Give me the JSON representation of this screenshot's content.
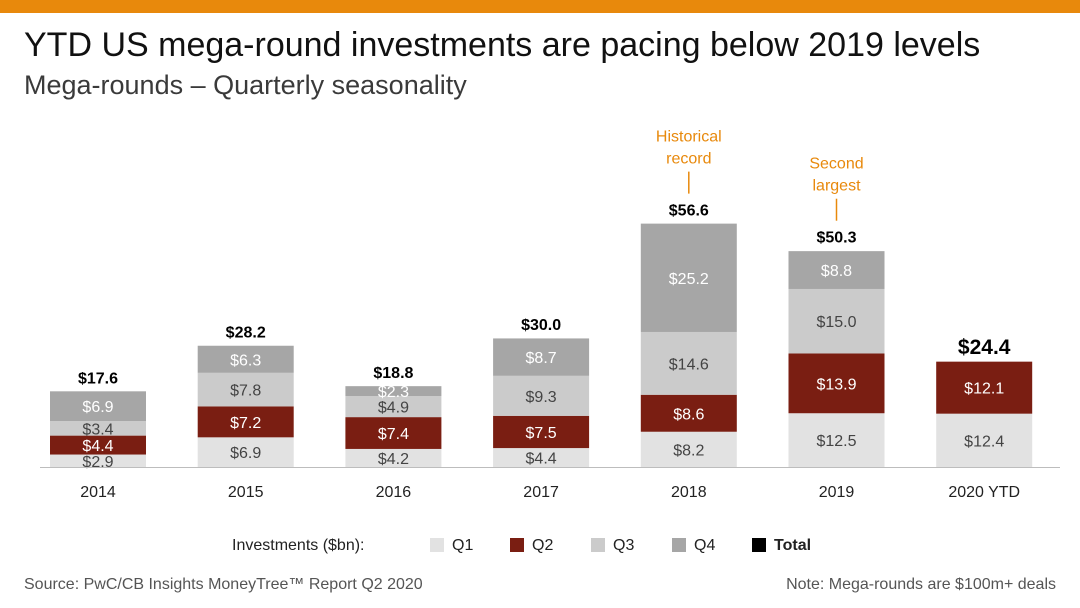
{
  "header": {
    "title": "YTD US mega-round investments are pacing below 2019 levels",
    "subtitle": "Mega-rounds – Quarterly seasonality"
  },
  "colors": {
    "accent": "#e8890c",
    "q1": "#e2e2e2",
    "q2": "#7a1e12",
    "q3": "#cbcbcb",
    "q4": "#a6a6a6",
    "total": "#000000"
  },
  "chart_data": {
    "type": "bar",
    "stacked": true,
    "categories": [
      "2014",
      "2015",
      "2016",
      "2017",
      "2018",
      "2019",
      "2020 YTD"
    ],
    "series": [
      {
        "name": "Q1",
        "values": [
          2.9,
          6.9,
          4.2,
          4.4,
          8.2,
          12.5,
          12.4
        ],
        "labels": [
          "$2.9",
          "$6.9",
          "$4.2",
          "$4.4",
          "$8.2",
          "$12.5",
          "$12.4"
        ]
      },
      {
        "name": "Q2",
        "values": [
          4.4,
          7.2,
          7.4,
          7.5,
          8.6,
          13.9,
          12.1
        ],
        "labels": [
          "$4.4",
          "$7.2",
          "$7.4",
          "$7.5",
          "$8.6",
          "$13.9",
          "$12.1"
        ]
      },
      {
        "name": "Q3",
        "values": [
          3.4,
          7.8,
          4.9,
          9.3,
          14.6,
          15.0,
          null
        ],
        "labels": [
          "$3.4",
          "$7.8",
          "$4.9",
          "$9.3",
          "$14.6",
          "$15.0",
          ""
        ]
      },
      {
        "name": "Q4",
        "values": [
          6.9,
          6.3,
          2.3,
          8.7,
          25.2,
          8.8,
          null
        ],
        "labels": [
          "$6.9",
          "$6.3",
          "$2.3",
          "$8.7",
          "$25.2",
          "$8.8",
          ""
        ]
      }
    ],
    "totals": [
      17.6,
      28.2,
      18.8,
      30.0,
      56.6,
      50.3,
      24.4
    ],
    "total_labels": [
      "$17.6",
      "$28.2",
      "$18.8",
      "$30.0",
      "$56.6",
      "$50.3",
      "$24.4"
    ],
    "annotations": [
      {
        "category": "2018",
        "lines": [
          "Historical",
          "record"
        ]
      },
      {
        "category": "2019",
        "lines": [
          "Second",
          "largest"
        ]
      }
    ],
    "ylim": [
      0,
      60
    ],
    "legend": {
      "title": "Investments ($bn):",
      "items": [
        "Q1",
        "Q2",
        "Q3",
        "Q4",
        "Total"
      ],
      "placement": "bottom"
    }
  },
  "footer": {
    "source": "Source: PwC/CB Insights MoneyTree™ Report Q2 2020",
    "note": "Note: Mega-rounds are $100m+ deals"
  }
}
